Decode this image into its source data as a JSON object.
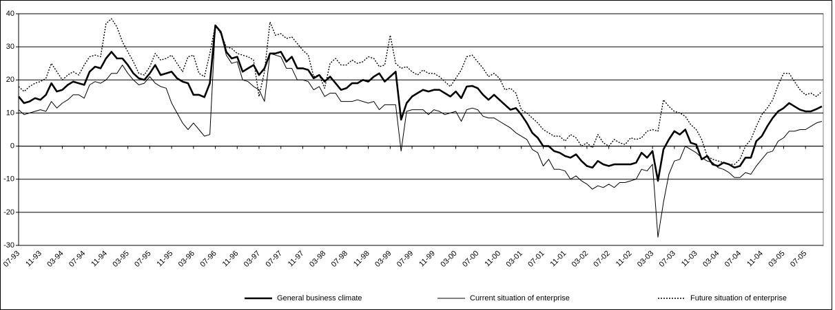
{
  "chart_data": {
    "type": "line",
    "categories": [
      "07-93",
      null,
      null,
      null,
      "11-93",
      null,
      null,
      null,
      "03-94",
      null,
      null,
      null,
      "07-94",
      null,
      null,
      null,
      "11-94",
      null,
      null,
      null,
      "03-95",
      null,
      null,
      null,
      "07-95",
      null,
      null,
      null,
      "11-95",
      null,
      null,
      null,
      "03-96",
      null,
      null,
      null,
      "07-96",
      null,
      null,
      null,
      "11-96",
      null,
      null,
      null,
      "03-97",
      null,
      null,
      null,
      "07-97",
      null,
      null,
      null,
      "11-97",
      null,
      null,
      null,
      "03-98",
      null,
      null,
      null,
      "07-98",
      null,
      null,
      null,
      "11-98",
      null,
      null,
      null,
      "03-99",
      null,
      null,
      null,
      "07-99",
      null,
      null,
      null,
      "11-99",
      null,
      null,
      null,
      "03-00",
      null,
      null,
      null,
      "07-00",
      null,
      null,
      null,
      "11-00",
      null,
      null,
      null,
      "03-01",
      null,
      null,
      null,
      "07-01",
      null,
      null,
      null,
      "11-01",
      null,
      null,
      null,
      "03-02",
      null,
      null,
      null,
      "07-02",
      null,
      null,
      null,
      "11-02",
      null,
      null,
      null,
      "03-03",
      null,
      null,
      null,
      "07-03",
      null,
      null,
      null,
      "11-03",
      null,
      null,
      null,
      "03-04",
      null,
      null,
      null,
      "07-04",
      null,
      null,
      null,
      "11-04",
      null,
      null,
      null,
      "03-05",
      null,
      null,
      null,
      "07-05",
      null,
      null,
      null
    ],
    "series": [
      {
        "name": "General business climate",
        "color": "#000000",
        "style": "thick",
        "values": [
          15,
          13,
          13.5,
          14.5,
          14,
          15.5,
          19,
          16.5,
          17,
          18.5,
          19.5,
          19,
          18.5,
          22.5,
          24,
          23.5,
          26.5,
          28.5,
          26.5,
          26.5,
          24.5,
          22,
          20.5,
          20,
          22,
          24.5,
          21.5,
          22,
          22.5,
          20.5,
          19.5,
          19,
          15.5,
          15.5,
          14.8,
          19,
          36.5,
          34.5,
          28.5,
          26.5,
          27,
          22.5,
          23.5,
          24.5,
          21.5,
          23.5,
          28,
          28,
          28.5,
          25.5,
          27,
          23.5,
          23.5,
          23,
          20.5,
          21.5,
          19.5,
          21,
          19,
          17,
          17.5,
          19,
          19,
          20,
          19.5,
          21,
          22,
          19.5,
          21,
          22.5,
          8,
          13,
          15,
          16,
          17,
          16.5,
          17,
          17,
          16,
          15,
          16.5,
          14.5,
          18,
          18.2,
          17.5,
          15.5,
          14,
          15.5,
          14,
          12.5,
          11,
          11.5,
          9.5,
          7,
          4,
          2.5,
          0,
          0,
          -1.5,
          -2,
          -3,
          -3.5,
          -2.5,
          -4.5,
          -6,
          -6.5,
          -4.5,
          -5.5,
          -6,
          -5.5,
          -5.5,
          -5.5,
          -5.5,
          -5,
          -2,
          -3.5,
          -1.5,
          -10.5,
          -1,
          2,
          4.5,
          3.5,
          5,
          1,
          0.5,
          -4,
          -3,
          -5.5,
          -6,
          -5,
          -5.5,
          -6.5,
          -6,
          -3.5,
          -3.5,
          1.5,
          3,
          6,
          8.5,
          10.5,
          11.5,
          13,
          12,
          11,
          10.5,
          10.5,
          11.2,
          12
        ]
      },
      {
        "name": "Current situation of enterprise",
        "color": "#000000",
        "style": "thin",
        "values": [
          11,
          9.5,
          10,
          10.5,
          11,
          10.5,
          13.5,
          11.5,
          13,
          14,
          15.5,
          15.5,
          14.5,
          18.5,
          19.5,
          19,
          20,
          22,
          22,
          24.5,
          22,
          20,
          18.5,
          19,
          21,
          19,
          18,
          17.5,
          13,
          10,
          7,
          5,
          7,
          5,
          3,
          3.5,
          36.5,
          34.5,
          27.5,
          25,
          25.5,
          20,
          19.5,
          18,
          17,
          13.5,
          28,
          27.5,
          27,
          23.5,
          23.5,
          20,
          20,
          19.5,
          17,
          18,
          15,
          16,
          16,
          13.5,
          13.5,
          13.5,
          14,
          13.5,
          13,
          13.5,
          11,
          12.5,
          12.5,
          12.5,
          -1.5,
          10.5,
          11,
          11,
          11,
          9.5,
          11,
          10.5,
          9.5,
          10,
          10.5,
          7.5,
          11,
          11.5,
          11,
          9,
          8.5,
          8.5,
          7.5,
          6.5,
          5.5,
          4,
          3,
          2,
          -1,
          -2,
          -6,
          -4,
          -7,
          -7,
          -7.5,
          -10,
          -9,
          -10.5,
          -11.5,
          -13,
          -12,
          -12.5,
          -11.5,
          -12.5,
          -11,
          -11,
          -10.5,
          -10,
          -7,
          -7.5,
          -5.5,
          -27.5,
          -17,
          -8.5,
          -4.5,
          -4,
          0,
          -1,
          -2,
          -3.5,
          -4.5,
          -5,
          -6.5,
          -7,
          -8,
          -9.5,
          -9.5,
          -8,
          -8.5,
          -6,
          -4,
          -2,
          -1.5,
          1.5,
          2.5,
          4.5,
          4.5,
          5,
          5,
          6,
          7,
          7.5
        ]
      },
      {
        "name": "Future situation of enterprise",
        "color": "#000000",
        "style": "dotted",
        "values": [
          18,
          16.5,
          18,
          19,
          19.5,
          20.5,
          25,
          22.5,
          20,
          21.5,
          22.5,
          21.5,
          24.5,
          27,
          27.5,
          27,
          37,
          38.5,
          36,
          31.5,
          28.5,
          25.5,
          22,
          21.5,
          24,
          28,
          26,
          26.5,
          27.5,
          25,
          22.5,
          27,
          27.5,
          22,
          21,
          28,
          36.5,
          34,
          30,
          29.5,
          28,
          27.5,
          27,
          26,
          15,
          22.5,
          37.5,
          33.5,
          34,
          32.5,
          33,
          31,
          29,
          27.5,
          21,
          21.5,
          17.5,
          25,
          26.5,
          24.5,
          24.5,
          26,
          25,
          25.5,
          27,
          26.5,
          24,
          24.5,
          33.5,
          25,
          23.5,
          24,
          22.5,
          21.5,
          23,
          22,
          22,
          21,
          19.5,
          18,
          20.5,
          23,
          27,
          27.5,
          25.5,
          23.5,
          21,
          22,
          20.5,
          17,
          17.5,
          16,
          11,
          10,
          8.5,
          7,
          5,
          4,
          3,
          3,
          1.5,
          3.5,
          2.5,
          0,
          1,
          -0.5,
          3.5,
          1,
          0,
          2,
          1,
          0.5,
          2.5,
          2,
          2.5,
          4.5,
          5,
          4.5,
          14,
          12,
          10.5,
          10,
          9,
          6.5,
          5,
          2,
          -3,
          -4,
          -4.5,
          -5,
          -5.5,
          -5.5,
          -4,
          0,
          2,
          6,
          9.5,
          11.5,
          14,
          18.5,
          22,
          22,
          19.5,
          17,
          15.5,
          16,
          15,
          16.5
        ]
      }
    ],
    "ylim": [
      -30,
      40
    ],
    "yticks": [
      -30,
      -20,
      -10,
      0,
      10,
      20,
      30,
      40
    ],
    "grid": true,
    "legend": "bottom"
  }
}
